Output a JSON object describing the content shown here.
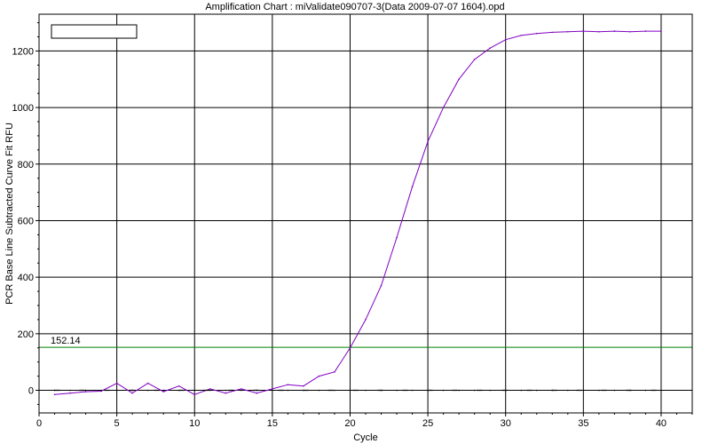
{
  "chart_data": {
    "type": "line",
    "title": "Amplification Chart : miValidate090707-3(Data 2009-07-07 1604).opd",
    "xlabel": "Cycle",
    "ylabel": "PCR Base Line Subtracted Curve Fit RFU",
    "xlim": [
      0,
      42
    ],
    "ylim": [
      -80,
      1330
    ],
    "xticks": [
      0,
      5,
      10,
      15,
      20,
      25,
      30,
      35,
      40
    ],
    "yticks": [
      0,
      200,
      400,
      600,
      800,
      1000,
      1200
    ],
    "grid": true,
    "threshold": {
      "value": 152.14,
      "label": "152.14",
      "color": "#008000"
    },
    "legend": {
      "position": "top-left",
      "entries": []
    },
    "series": [
      {
        "color": "#8000c0",
        "x": [
          1,
          2,
          3,
          4,
          5,
          6,
          7,
          8,
          9,
          10,
          11,
          12,
          13,
          14,
          15,
          16,
          17,
          18,
          19,
          20,
          21,
          22,
          23,
          24,
          25,
          26,
          27,
          28,
          29,
          30,
          31,
          32,
          33,
          34,
          35,
          36,
          37,
          38,
          39,
          40
        ],
        "y": [
          -15,
          -10,
          -5,
          -3,
          25,
          -10,
          25,
          -5,
          15,
          -15,
          5,
          -10,
          5,
          -10,
          5,
          20,
          15,
          50,
          65,
          150,
          250,
          370,
          540,
          720,
          880,
          1000,
          1100,
          1170,
          1210,
          1240,
          1255,
          1262,
          1266,
          1268,
          1270,
          1268,
          1270,
          1268,
          1270,
          1270
        ]
      },
      {
        "color": "#000000",
        "x": [
          1,
          2,
          3,
          4,
          5,
          6,
          7,
          8,
          9,
          10,
          11,
          12,
          13,
          14,
          15,
          16,
          17,
          18,
          19,
          20,
          21,
          22,
          23,
          24,
          25,
          26,
          27,
          28,
          29,
          30,
          31,
          32,
          33,
          34,
          35,
          36,
          37,
          38,
          39,
          40
        ],
        "y": [
          0,
          0,
          0,
          0,
          0,
          0,
          0,
          0,
          0,
          0,
          0,
          0,
          0,
          0,
          0,
          0,
          0,
          0,
          0,
          0,
          0,
          0,
          0,
          0,
          0,
          0,
          0,
          0,
          0,
          0,
          0,
          0,
          0,
          0,
          0,
          0,
          0,
          0,
          0,
          0
        ]
      }
    ]
  }
}
